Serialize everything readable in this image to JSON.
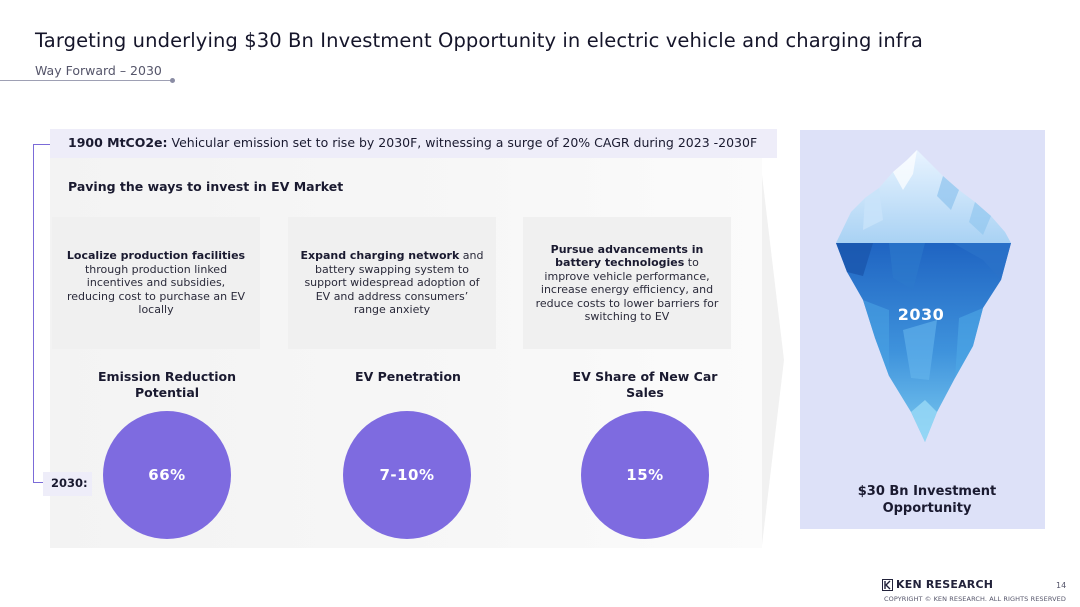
{
  "header": {
    "title": "Targeting underlying $30 Bn Investment Opportunity in electric vehicle and charging infra",
    "subtitle": "Way Forward – 2030"
  },
  "emission": {
    "value": "1900 MtCO2e:",
    "text": " Vehicular emission set to rise by 2030F, witnessing a surge of 20% CAGR during 2023 -2030F"
  },
  "paving_title": "Paving the ways to invest in EV Market",
  "cards": [
    {
      "bold": "Localize production facilities",
      "text": " through production linked incentives and subsidies, reducing cost to purchase an EV locally"
    },
    {
      "bold": "Expand charging network",
      "text": " and battery swapping system to support widespread adoption of EV and address consumers’ range anxiety"
    },
    {
      "bold": "Pursue advancements in battery technologies",
      "text": " to improve vehicle performance, increase energy efficiency, and reduce costs to lower barriers for switching to EV"
    }
  ],
  "metrics": [
    {
      "label": "Emission Reduction Potential",
      "value": "66%"
    },
    {
      "label": "EV Penetration",
      "value": "7-10%"
    },
    {
      "label": "EV Share of New Car Sales",
      "value": "15%"
    }
  ],
  "year_label": "2030:",
  "iceberg": {
    "year": "2030",
    "caption": "$30 Bn Investment Opportunity",
    "colors": {
      "top": "#5fb2ea",
      "bottom": "#1f64c2",
      "panel": "#dde1f8"
    }
  },
  "footer": {
    "brand": "KEN RESEARCH",
    "copyright": "COPYRIGHT © KEN RESEARCH. ALL RIGHTS RESERVED",
    "page": "14"
  },
  "colors": {
    "accent": "#7e6be0",
    "emission_bg": "#eeedf9",
    "card_bg": "#f0f0f0"
  }
}
